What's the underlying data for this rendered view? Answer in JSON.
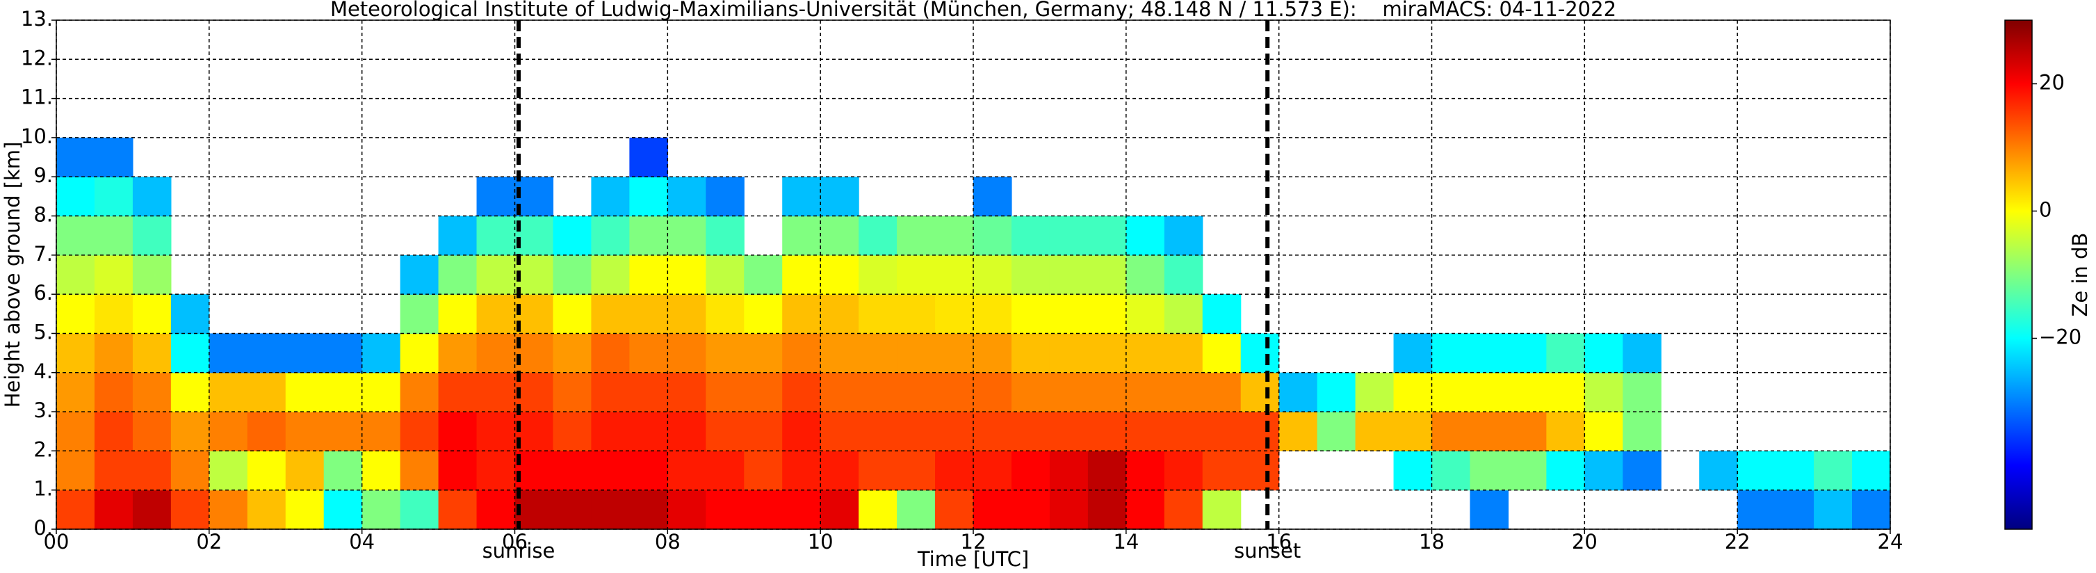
{
  "chart_data": {
    "type": "heatmap",
    "title": "Meteorological Institute of Ludwig-Maximilians-Universität (München, Germany; 48.148 N / 11.573 E):    miraMACS: 04-11-2022",
    "xlabel": "Time [UTC]",
    "ylabel": "Height above ground [km]",
    "colorbar_label": "Ze in dB",
    "colormap": "jet",
    "grid": true,
    "xlim": [
      0,
      24
    ],
    "ylim": [
      0,
      13
    ],
    "clim": [
      -50,
      30
    ],
    "xticks": [
      {
        "value": 0,
        "label": "00"
      },
      {
        "value": 2,
        "label": "02"
      },
      {
        "value": 4,
        "label": "04"
      },
      {
        "value": 6,
        "label": "06"
      },
      {
        "value": 8,
        "label": "08"
      },
      {
        "value": 10,
        "label": "10"
      },
      {
        "value": 12,
        "label": "12"
      },
      {
        "value": 14,
        "label": "14"
      },
      {
        "value": 16,
        "label": "16"
      },
      {
        "value": 18,
        "label": "18"
      },
      {
        "value": 20,
        "label": "20"
      },
      {
        "value": 22,
        "label": "22"
      },
      {
        "value": 24,
        "label": "24"
      }
    ],
    "yticks": [
      {
        "value": 0,
        "label": "0."
      },
      {
        "value": 1,
        "label": "1."
      },
      {
        "value": 2,
        "label": "2."
      },
      {
        "value": 3,
        "label": "3."
      },
      {
        "value": 4,
        "label": "4."
      },
      {
        "value": 5,
        "label": "5."
      },
      {
        "value": 6,
        "label": "6."
      },
      {
        "value": 7,
        "label": "7."
      },
      {
        "value": 8,
        "label": "8."
      },
      {
        "value": 9,
        "label": "9."
      },
      {
        "value": 10,
        "label": "10."
      },
      {
        "value": 11,
        "label": "11."
      },
      {
        "value": 12,
        "label": "12."
      },
      {
        "value": 13,
        "label": "13."
      }
    ],
    "cticks": [
      {
        "value": -20,
        "label": "−20"
      },
      0,
      20
    ],
    "annotations": [
      {
        "text": "sunrise",
        "x": 6.05
      },
      {
        "text": "sunset",
        "x": 15.85
      }
    ],
    "x_bins": [
      0,
      0.5,
      1,
      1.5,
      2,
      2.5,
      3,
      3.5,
      4,
      4.5,
      5,
      5.5,
      6,
      6.5,
      7,
      7.5,
      8,
      8.5,
      9,
      9.5,
      10,
      10.5,
      11,
      11.5,
      12,
      12.5,
      13,
      13.5,
      14,
      14.5,
      15,
      15.5,
      16,
      16.5,
      17,
      17.5,
      18,
      18.5,
      19,
      19.5,
      20,
      20.5,
      21,
      21.5,
      22,
      22.5,
      23,
      23.5,
      24
    ],
    "y_bins": [
      0,
      1,
      2,
      3,
      4,
      5,
      6,
      7,
      8,
      9,
      10
    ],
    "values": [
      [
        15,
        10,
        10,
        8,
        5,
        0,
        -5,
        -10,
        -20,
        -30
      ],
      [
        22,
        15,
        15,
        12,
        8,
        2,
        -3,
        -10,
        -18,
        -30
      ],
      [
        25,
        15,
        12,
        10,
        5,
        0,
        -8,
        -15,
        -25,
        null
      ],
      [
        15,
        10,
        8,
        0,
        -20,
        -25,
        null,
        null,
        null,
        null
      ],
      [
        10,
        -5,
        10,
        5,
        -30,
        null,
        null,
        null,
        null,
        null
      ],
      [
        5,
        0,
        12,
        5,
        -30,
        null,
        null,
        null,
        null,
        null
      ],
      [
        0,
        5,
        10,
        0,
        -30,
        null,
        null,
        null,
        null,
        null
      ],
      [
        -20,
        -10,
        10,
        0,
        -30,
        null,
        null,
        null,
        null,
        null
      ],
      [
        -10,
        0,
        10,
        0,
        -25,
        null,
        null,
        null,
        null,
        null
      ],
      [
        -15,
        10,
        15,
        10,
        0,
        -10,
        -25,
        null,
        null,
        null
      ],
      [
        15,
        20,
        20,
        15,
        8,
        0,
        -10,
        -25,
        null,
        null
      ],
      [
        20,
        18,
        18,
        15,
        10,
        5,
        -5,
        -15,
        -30,
        null
      ],
      [
        25,
        20,
        18,
        15,
        10,
        5,
        -5,
        -15,
        -30,
        null
      ],
      [
        25,
        20,
        15,
        12,
        8,
        0,
        -10,
        -20,
        null,
        null
      ],
      [
        25,
        20,
        18,
        15,
        12,
        5,
        -5,
        -15,
        -25,
        null
      ],
      [
        25,
        20,
        18,
        15,
        10,
        5,
        0,
        -10,
        -20,
        -35
      ],
      [
        22,
        18,
        18,
        15,
        10,
        5,
        0,
        -10,
        -25,
        null
      ],
      [
        20,
        18,
        15,
        12,
        8,
        2,
        -5,
        -15,
        -30,
        null
      ],
      [
        20,
        15,
        15,
        12,
        8,
        0,
        -10,
        null,
        null,
        null
      ],
      [
        20,
        18,
        18,
        15,
        10,
        5,
        0,
        -10,
        -25,
        null
      ],
      [
        22,
        18,
        15,
        12,
        8,
        5,
        0,
        -10,
        -25,
        null
      ],
      [
        0,
        15,
        15,
        12,
        8,
        3,
        -3,
        -15,
        null,
        null
      ],
      [
        -10,
        15,
        15,
        12,
        8,
        3,
        -2,
        -10,
        null,
        null
      ],
      [
        15,
        18,
        15,
        12,
        8,
        2,
        -2,
        -10,
        null,
        null
      ],
      [
        20,
        18,
        15,
        12,
        8,
        2,
        -3,
        -12,
        -30,
        null
      ],
      [
        20,
        20,
        15,
        10,
        5,
        0,
        -5,
        -15,
        null,
        null
      ],
      [
        22,
        22,
        15,
        10,
        5,
        0,
        -5,
        -15,
        null,
        null
      ],
      [
        25,
        25,
        15,
        10,
        5,
        0,
        -5,
        -15,
        null,
        null
      ],
      [
        20,
        20,
        15,
        10,
        5,
        -2,
        -10,
        -20,
        null,
        null
      ],
      [
        15,
        18,
        15,
        10,
        5,
        -5,
        -15,
        -25,
        null,
        null
      ],
      [
        -5,
        15,
        15,
        10,
        0,
        -20,
        null,
        null,
        null,
        null
      ],
      [
        null,
        15,
        15,
        5,
        -20,
        null,
        null,
        null,
        null,
        null
      ],
      [
        null,
        null,
        5,
        -25,
        null,
        null,
        null,
        null,
        null,
        null
      ],
      [
        null,
        null,
        -10,
        -20,
        null,
        null,
        null,
        null,
        null,
        null
      ],
      [
        null,
        null,
        5,
        -5,
        null,
        null,
        null,
        null,
        null,
        null
      ],
      [
        null,
        -20,
        5,
        0,
        -25,
        null,
        null,
        null,
        null,
        null
      ],
      [
        null,
        -15,
        10,
        0,
        -20,
        null,
        null,
        null,
        null,
        null
      ],
      [
        -30,
        -10,
        10,
        0,
        -20,
        null,
        null,
        null,
        null,
        null
      ],
      [
        null,
        -10,
        10,
        0,
        -20,
        null,
        null,
        null,
        null,
        null
      ],
      [
        null,
        -20,
        5,
        0,
        -15,
        null,
        null,
        null,
        null,
        null
      ],
      [
        null,
        -25,
        0,
        -5,
        -20,
        null,
        null,
        null,
        null,
        null
      ],
      [
        null,
        -30,
        -10,
        -10,
        -25,
        null,
        null,
        null,
        null,
        null
      ],
      [
        null,
        null,
        null,
        null,
        null,
        null,
        null,
        null,
        null,
        null
      ],
      [
        null,
        -25,
        null,
        null,
        null,
        null,
        null,
        null,
        null,
        null
      ],
      [
        -30,
        -20,
        null,
        null,
        null,
        null,
        null,
        null,
        null,
        null
      ],
      [
        -30,
        -20,
        null,
        null,
        null,
        null,
        null,
        null,
        null,
        null
      ],
      [
        -25,
        -15,
        null,
        null,
        null,
        null,
        null,
        null,
        null,
        null
      ],
      [
        -30,
        -20,
        null,
        null,
        null,
        null,
        null,
        null,
        null,
        null
      ]
    ]
  }
}
